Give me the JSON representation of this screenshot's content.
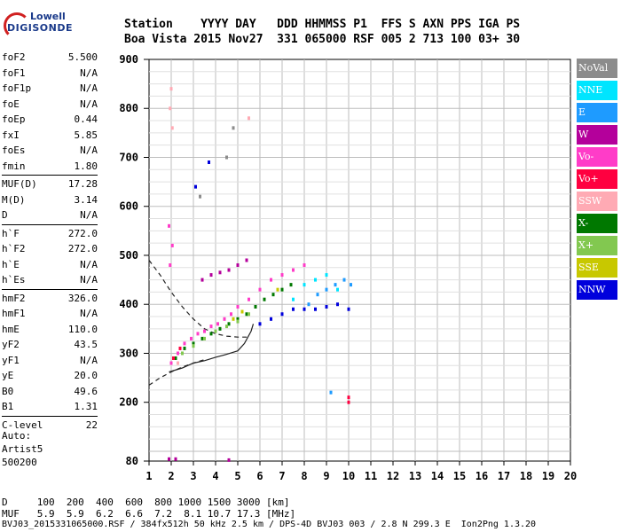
{
  "logo": {
    "line1": "Lowell",
    "line2": "DIGISONDE"
  },
  "header": {
    "line1": "Station    YYYY DAY   DDD HHMMSS P1  FFS S AXN PPS IGA PS",
    "line2": "Boa Vista 2015 Nov27  331 065000 RSF 005 2 713 100 03+ 30"
  },
  "params": [
    [
      {
        "k": "foF2",
        "v": "5.500"
      },
      {
        "k": "foF1",
        "v": "N/A"
      },
      {
        "k": "foF1p",
        "v": "N/A"
      },
      {
        "k": "foE",
        "v": "N/A"
      },
      {
        "k": "foEp",
        "v": "0.44"
      },
      {
        "k": "fxI",
        "v": "5.85"
      },
      {
        "k": "foEs",
        "v": "N/A"
      },
      {
        "k": "fmin",
        "v": "1.80"
      }
    ],
    [
      {
        "k": "MUF(D)",
        "v": "17.28"
      },
      {
        "k": "M(D)",
        "v": "3.14"
      },
      {
        "k": "D",
        "v": "N/A"
      }
    ],
    [
      {
        "k": "h`F",
        "v": "272.0"
      },
      {
        "k": "h`F2",
        "v": "272.0"
      },
      {
        "k": "h`E",
        "v": "N/A"
      },
      {
        "k": "h`Es",
        "v": "N/A"
      }
    ],
    [
      {
        "k": "hmF2",
        "v": "326.0"
      },
      {
        "k": "hmF1",
        "v": "N/A"
      },
      {
        "k": "hmE",
        "v": "110.0"
      },
      {
        "k": "yF2",
        "v": "43.5"
      },
      {
        "k": "yF1",
        "v": "N/A"
      },
      {
        "k": "yE",
        "v": "20.0"
      },
      {
        "k": "B0",
        "v": "49.6"
      },
      {
        "k": "B1",
        "v": "1.31"
      }
    ],
    [
      {
        "k": "C-level",
        "v": "22"
      }
    ]
  ],
  "auto": {
    "line1": "Auto:",
    "line2": "Artist5",
    "line3": "500200"
  },
  "legend": [
    {
      "label": "NoVal",
      "color": "#8c8c8c"
    },
    {
      "label": "NNE",
      "color": "#00e5ff"
    },
    {
      "label": "E",
      "color": "#1e9bff"
    },
    {
      "label": "W",
      "color": "#b4009b"
    },
    {
      "label": "Vo-",
      "color": "#ff3cc8"
    },
    {
      "label": "Vo+",
      "color": "#ff0040"
    },
    {
      "label": "SSW",
      "color": "#ffaab4"
    },
    {
      "label": "X-",
      "color": "#007800"
    },
    {
      "label": "X+",
      "color": "#82c850"
    },
    {
      "label": "SSE",
      "color": "#c8c800"
    },
    {
      "label": "NNW",
      "color": "#0000dc"
    }
  ],
  "bottom": {
    "line1": "D     100  200  400  600  800 1000 1500 3000 [km]",
    "line2": "MUF   5.9  5.9  6.2  6.6  7.2  8.1 10.7 17.3 [MHz]",
    "line3": "BVJ03_2015331065000.RSF / 384fx512h 50 kHz 2.5 km / DPS-4D BVJ03 003 / 2.8 N 299.3 E  Ion2Png 1.3.20"
  },
  "chart_data": {
    "type": "scatter",
    "title": "",
    "xlabel": "",
    "ylabel": "",
    "xlim": [
      1,
      20
    ],
    "ylim": [
      80,
      900
    ],
    "x_ticks": [
      1,
      2,
      3,
      4,
      5,
      6,
      7,
      8,
      9,
      10,
      11,
      12,
      13,
      14,
      15,
      16,
      17,
      18,
      19,
      20
    ],
    "y_ticks": [
      80,
      200,
      300,
      400,
      500,
      600,
      700,
      800,
      900
    ],
    "grid": true,
    "legend_position": "right",
    "series": [
      {
        "name": "Vo-",
        "color": "#ff3cc8",
        "points": [
          [
            2.0,
            280
          ],
          [
            2.3,
            300
          ],
          [
            2.6,
            320
          ],
          [
            2.9,
            330
          ],
          [
            3.2,
            340
          ],
          [
            3.5,
            345
          ],
          [
            3.8,
            355
          ],
          [
            4.1,
            360
          ],
          [
            4.4,
            370
          ],
          [
            4.7,
            380
          ],
          [
            5.0,
            395
          ],
          [
            5.5,
            410
          ],
          [
            6.0,
            430
          ],
          [
            6.5,
            450
          ],
          [
            7.0,
            460
          ],
          [
            7.5,
            470
          ],
          [
            8.0,
            480
          ],
          [
            1.9,
            560
          ],
          [
            1.95,
            480
          ],
          [
            2.05,
            520
          ]
        ]
      },
      {
        "name": "X-",
        "color": "#007800",
        "points": [
          [
            2.2,
            290
          ],
          [
            2.6,
            310
          ],
          [
            3.0,
            320
          ],
          [
            3.4,
            330
          ],
          [
            3.8,
            340
          ],
          [
            4.2,
            350
          ],
          [
            4.6,
            360
          ],
          [
            5.0,
            370
          ],
          [
            5.4,
            380
          ],
          [
            5.8,
            395
          ],
          [
            6.2,
            410
          ],
          [
            6.6,
            420
          ],
          [
            7.0,
            430
          ],
          [
            7.4,
            440
          ]
        ]
      },
      {
        "name": "W",
        "color": "#b4009b",
        "points": [
          [
            3.4,
            450
          ],
          [
            3.8,
            460
          ],
          [
            4.2,
            465
          ],
          [
            4.6,
            470
          ],
          [
            5.0,
            480
          ],
          [
            5.4,
            490
          ],
          [
            1.9,
            84
          ],
          [
            2.2,
            84
          ],
          [
            4.6,
            82
          ]
        ]
      },
      {
        "name": "NNW",
        "color": "#0000dc",
        "points": [
          [
            6.0,
            360
          ],
          [
            6.5,
            370
          ],
          [
            7.0,
            380
          ],
          [
            7.5,
            390
          ],
          [
            8.0,
            390
          ],
          [
            8.5,
            390
          ],
          [
            9.0,
            395
          ],
          [
            9.5,
            400
          ],
          [
            10.0,
            390
          ],
          [
            3.7,
            690
          ],
          [
            3.1,
            640
          ]
        ]
      },
      {
        "name": "E",
        "color": "#1e9bff",
        "points": [
          [
            8.2,
            400
          ],
          [
            8.6,
            420
          ],
          [
            9.0,
            430
          ],
          [
            9.4,
            440
          ],
          [
            9.8,
            450
          ],
          [
            10.1,
            440
          ],
          [
            9.2,
            220
          ]
        ]
      },
      {
        "name": "NNE",
        "color": "#00e5ff",
        "points": [
          [
            7.5,
            410
          ],
          [
            8.0,
            440
          ],
          [
            8.5,
            450
          ],
          [
            9.0,
            460
          ],
          [
            9.5,
            430
          ]
        ]
      },
      {
        "name": "X+",
        "color": "#82c850",
        "points": [
          [
            2.5,
            300
          ],
          [
            3.0,
            315
          ],
          [
            3.5,
            330
          ],
          [
            4.0,
            345
          ],
          [
            4.5,
            355
          ],
          [
            5.0,
            365
          ],
          [
            5.5,
            380
          ]
        ]
      },
      {
        "name": "SSW",
        "color": "#ffaab4",
        "points": [
          [
            1.95,
            800
          ],
          [
            2.0,
            840
          ],
          [
            2.05,
            760
          ],
          [
            5.5,
            780
          ],
          [
            2.3,
            280
          ]
        ]
      },
      {
        "name": "Vo+",
        "color": "#ff0040",
        "points": [
          [
            10.0,
            200
          ],
          [
            10.0,
            210
          ],
          [
            2.1,
            290
          ],
          [
            2.4,
            310
          ]
        ]
      },
      {
        "name": "SSE",
        "color": "#c8c800",
        "points": [
          [
            4.8,
            370
          ],
          [
            5.2,
            385
          ],
          [
            6.8,
            430
          ]
        ]
      },
      {
        "name": "NoVal",
        "color": "#8c8c8c",
        "points": [
          [
            4.5,
            700
          ],
          [
            4.8,
            760
          ],
          [
            3.3,
            620
          ]
        ]
      }
    ],
    "model_curves": [
      {
        "name": "",
        "style": "dashed",
        "points": [
          [
            1.0,
            490
          ],
          [
            1.5,
            460
          ],
          [
            2.0,
            425
          ],
          [
            2.5,
            395
          ],
          [
            3.0,
            370
          ],
          [
            3.5,
            350
          ],
          [
            4.0,
            340
          ],
          [
            4.5,
            335
          ],
          [
            5.0,
            333
          ],
          [
            5.5,
            333
          ]
        ]
      },
      {
        "name": "",
        "style": "dashed",
        "points": [
          [
            1.0,
            235
          ],
          [
            1.5,
            250
          ],
          [
            2.0,
            262
          ],
          [
            2.5,
            272
          ],
          [
            3.0,
            280
          ],
          [
            3.5,
            287
          ]
        ]
      },
      {
        "name": "",
        "style": "solid",
        "points": [
          [
            1.9,
            262
          ],
          [
            2.5,
            270
          ],
          [
            3.0,
            280
          ],
          [
            3.5,
            285
          ],
          [
            4.0,
            292
          ],
          [
            4.5,
            298
          ],
          [
            5.0,
            305
          ],
          [
            5.3,
            320
          ],
          [
            5.6,
            345
          ],
          [
            5.7,
            360
          ]
        ]
      }
    ]
  }
}
